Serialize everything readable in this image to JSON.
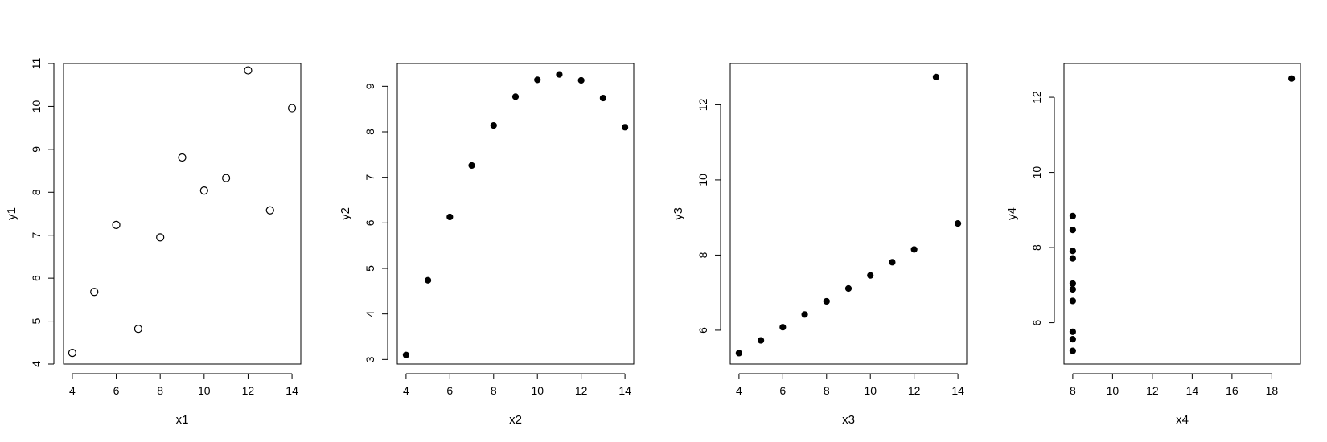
{
  "chart_data": [
    {
      "type": "scatter",
      "xlabel": "x1",
      "ylabel": "y1",
      "marker": "open-circle",
      "xlim": [
        3.6,
        14.4
      ],
      "ylim": [
        4,
        11
      ],
      "xticks": [
        "4",
        "6",
        "8",
        "10",
        "12",
        "14"
      ],
      "yticks": [
        "4",
        "5",
        "6",
        "7",
        "8",
        "9",
        "10",
        "11"
      ],
      "x": [
        10,
        8,
        13,
        9,
        11,
        14,
        6,
        4,
        12,
        7,
        5
      ],
      "y": [
        8.04,
        6.95,
        7.58,
        8.81,
        8.33,
        9.96,
        7.24,
        4.26,
        10.84,
        4.82,
        5.68
      ]
    },
    {
      "type": "scatter",
      "xlabel": "x2",
      "ylabel": "y2",
      "marker": "filled-circle",
      "xlim": [
        3.6,
        14.4
      ],
      "ylim": [
        2.9,
        9.5
      ],
      "xticks": [
        "4",
        "6",
        "8",
        "10",
        "12",
        "14"
      ],
      "yticks": [
        "3",
        "4",
        "5",
        "6",
        "7",
        "8",
        "9"
      ],
      "x": [
        10,
        8,
        13,
        9,
        11,
        14,
        6,
        4,
        12,
        7,
        5
      ],
      "y": [
        9.14,
        8.14,
        8.74,
        8.77,
        9.26,
        8.1,
        6.13,
        3.1,
        9.13,
        7.26,
        4.74
      ]
    },
    {
      "type": "scatter",
      "xlabel": "x3",
      "ylabel": "y3",
      "marker": "filled-circle",
      "xlim": [
        3.6,
        14.4
      ],
      "ylim": [
        5.1,
        13.1
      ],
      "xticks": [
        "4",
        "6",
        "8",
        "10",
        "12",
        "14"
      ],
      "yticks": [
        "6",
        "8",
        "10",
        "12"
      ],
      "x": [
        10,
        8,
        13,
        9,
        11,
        14,
        6,
        4,
        12,
        7,
        5
      ],
      "y": [
        7.46,
        6.77,
        12.74,
        7.11,
        7.81,
        8.84,
        6.08,
        5.39,
        8.15,
        6.42,
        5.73
      ]
    },
    {
      "type": "scatter",
      "xlabel": "x4",
      "ylabel": "y4",
      "marker": "filled-circle",
      "xlim": [
        7.56,
        19.44
      ],
      "ylim": [
        4.9,
        12.9
      ],
      "xticks": [
        "8",
        "10",
        "12",
        "14",
        "16",
        "18"
      ],
      "yticks": [
        "6",
        "8",
        "10",
        "12"
      ],
      "x": [
        8,
        8,
        8,
        8,
        8,
        8,
        8,
        19,
        8,
        8,
        8
      ],
      "y": [
        6.58,
        5.76,
        7.71,
        8.84,
        8.47,
        7.04,
        5.25,
        12.5,
        5.56,
        7.91,
        6.89
      ]
    }
  ]
}
